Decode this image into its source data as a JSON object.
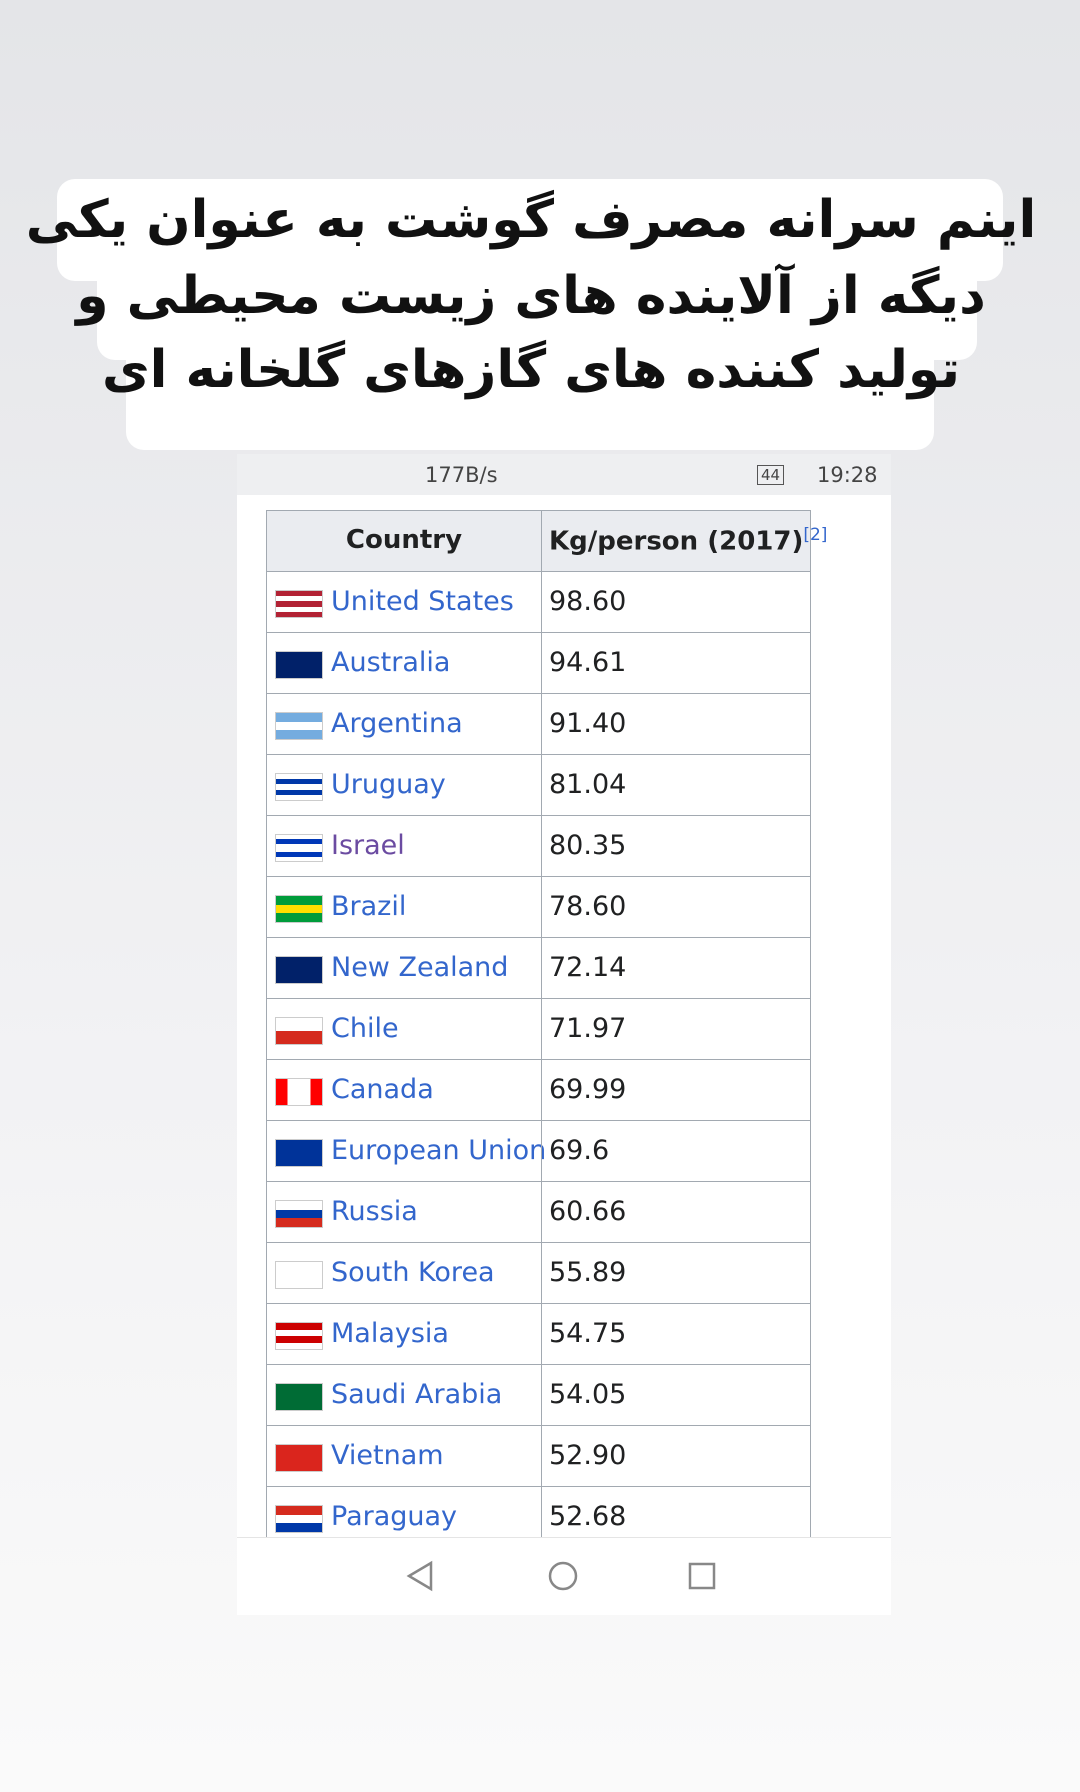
{
  "caption": {
    "lines": [
      "اینم سرانه مصرف گوشت به عنوان یکی",
      "دیگه از آلاینده های زیست محیطی و",
      "تولید کننده های گازهای گلخانه ای"
    ]
  },
  "status_bar": {
    "network": "177B/s",
    "battery": "44",
    "time": "19:28"
  },
  "table": {
    "header": {
      "country": "Country",
      "value": "Kg/person (2017)",
      "ref": "[2]"
    },
    "rows": [
      {
        "country": "United States",
        "value": "98.60"
      },
      {
        "country": "Australia",
        "value": "94.61"
      },
      {
        "country": "Argentina",
        "value": "91.40"
      },
      {
        "country": "Uruguay",
        "value": "81.04"
      },
      {
        "country": "Israel",
        "value": "80.35"
      },
      {
        "country": "Brazil",
        "value": "78.60"
      },
      {
        "country": "New Zealand",
        "value": "72.14"
      },
      {
        "country": "Chile",
        "value": "71.97"
      },
      {
        "country": "Canada",
        "value": "69.99"
      },
      {
        "country": "European Union",
        "value": "69.6"
      },
      {
        "country": "Russia",
        "value": "60.66"
      },
      {
        "country": "South Korea",
        "value": "55.89"
      },
      {
        "country": "Malaysia",
        "value": "54.75"
      },
      {
        "country": "Saudi Arabia",
        "value": "54.05"
      },
      {
        "country": "Vietnam",
        "value": "52.90"
      },
      {
        "country": "Paraguay",
        "value": "52.68"
      }
    ]
  }
}
